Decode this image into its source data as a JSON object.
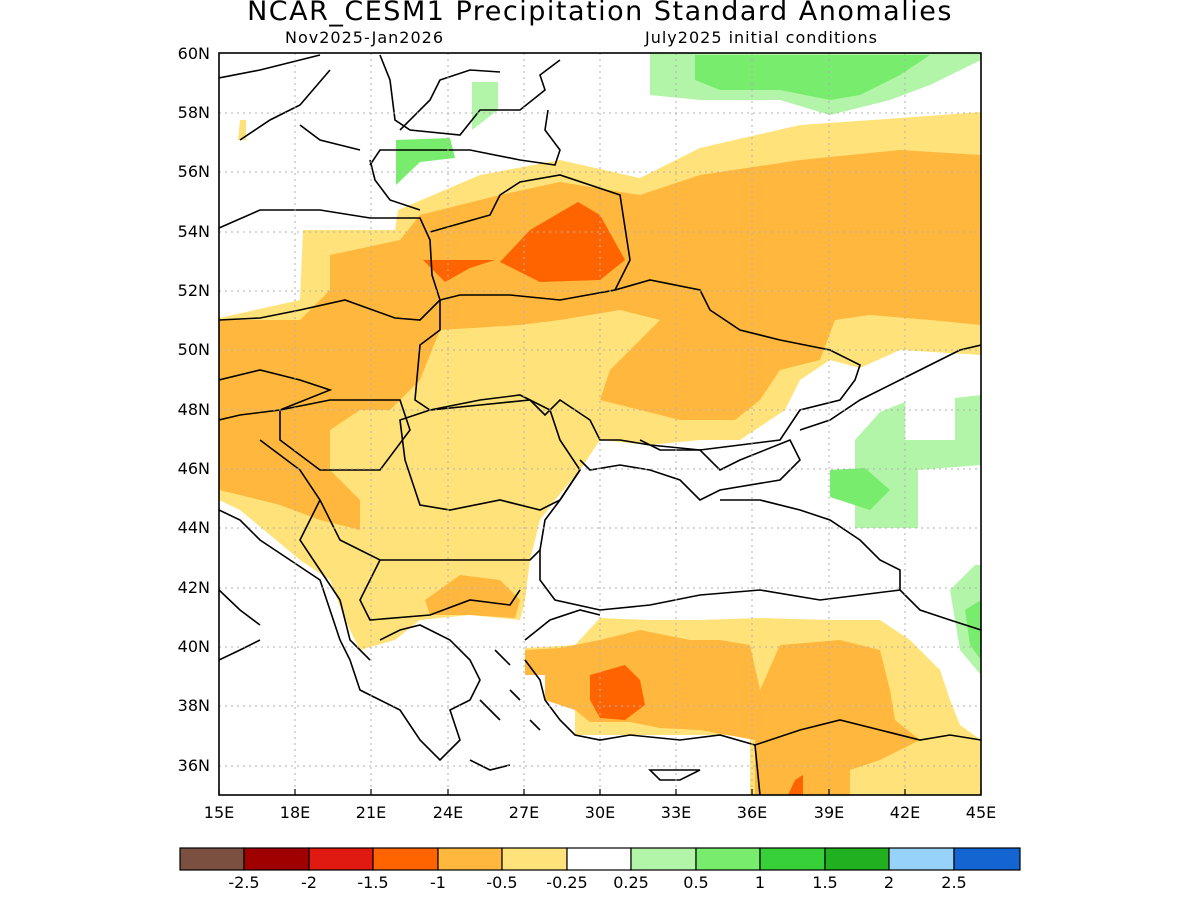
{
  "title": "NCAR_CESM1 Precipitation Standard Anomalies",
  "subtitle_left": "Nov2025-Jan2026",
  "subtitle_right": "July2025 initial conditions",
  "axes": {
    "lon_ticks": [
      "15E",
      "18E",
      "21E",
      "24E",
      "27E",
      "30E",
      "33E",
      "36E",
      "39E",
      "42E",
      "45E"
    ],
    "lat_ticks": [
      "60N",
      "58N",
      "56N",
      "54N",
      "52N",
      "50N",
      "48N",
      "46N",
      "44N",
      "42N",
      "40N",
      "38N",
      "36N"
    ],
    "lon_range": [
      15,
      45
    ],
    "lat_range": [
      35,
      60
    ],
    "grid": "dotted"
  },
  "colorbar": {
    "colors": [
      "#7b5040",
      "#a00000",
      "#e01a10",
      "#ff6400",
      "#ffb83d",
      "#ffe37a",
      "#ffffff",
      "#b3f5a8",
      "#78ec6c",
      "#38d038",
      "#20b020",
      "#96d2fa",
      "#1464d2"
    ],
    "labels": [
      "-2.5",
      "-2",
      "-1.5",
      "-1",
      "-0.5",
      "-0.25",
      "0.25",
      "0.5",
      "1",
      "1.5",
      "2",
      "2.5"
    ]
  },
  "colors": {
    "dry_moderate": "#ffb83d",
    "dry_light": "#ffe37a",
    "dry_strong": "#ff6400",
    "dry_very_strong": "#e01a10",
    "wet_light": "#b3f5a8",
    "wet_moderate": "#78ec6c"
  }
}
